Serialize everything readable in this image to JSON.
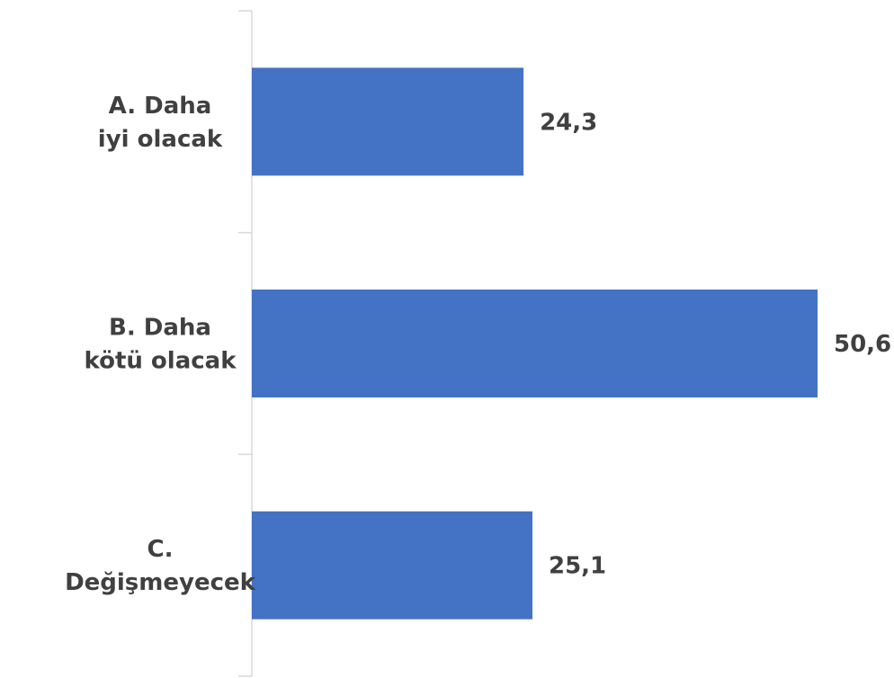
{
  "chart_data": {
    "type": "bar",
    "orientation": "horizontal",
    "categories": [
      "A. Daha iyi olacak",
      "B. Daha kötü olacak",
      "C. Değişmeyecek"
    ],
    "category_label_lines": [
      [
        "A. Daha",
        "iyi olacak"
      ],
      [
        "B. Daha",
        "kötü olacak"
      ],
      [
        "C.",
        "Değişmeyecek"
      ]
    ],
    "values": [
      24.3,
      50.6,
      25.1
    ],
    "value_labels": [
      "24,3",
      "50,6",
      "25,1"
    ],
    "xlim": [
      0,
      52
    ],
    "bar_color": "#4472C4",
    "axis_color": "#d9d9d9",
    "label_color": "#404040",
    "grid": false,
    "legend": "none",
    "title": "",
    "xlabel": "",
    "ylabel": ""
  }
}
